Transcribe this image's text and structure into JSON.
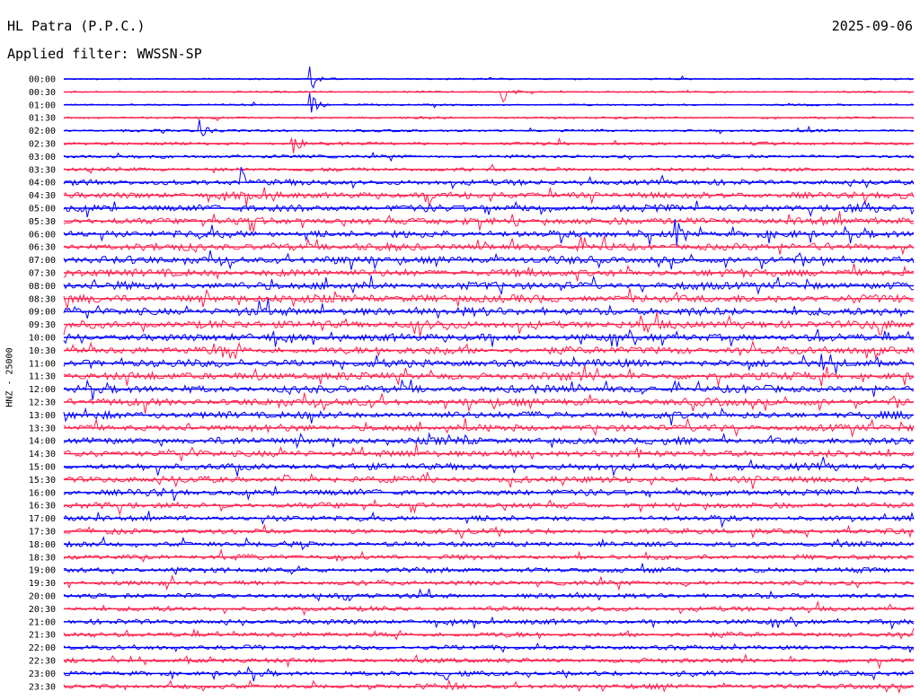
{
  "header": {
    "station": "HL Patra (P.P.C.)",
    "filter": "Applied filter: WWSSN-SP",
    "date": "2025-09-06"
  },
  "chart_data": {
    "type": "line",
    "title": "HL Patra (P.P.C.)",
    "subtitle": "Applied filter: WWSSN-SP",
    "ylabel": "HNZ - 25000",
    "xlabel": "",
    "row_labels": [
      "00:00",
      "00:30",
      "01:00",
      "01:30",
      "02:00",
      "02:30",
      "03:00",
      "03:30",
      "04:00",
      "04:30",
      "05:00",
      "05:30",
      "06:00",
      "06:30",
      "07:00",
      "07:30",
      "08:00",
      "08:30",
      "09:00",
      "09:30",
      "10:00",
      "10:30",
      "11:00",
      "11:30",
      "12:00",
      "12:30",
      "13:00",
      "13:30",
      "14:00",
      "14:30",
      "15:00",
      "15:30",
      "16:00",
      "16:30",
      "17:00",
      "17:30",
      "18:00",
      "18:30",
      "19:00",
      "19:30",
      "20:00",
      "20:30",
      "21:00",
      "21:30",
      "22:00",
      "22:30",
      "23:00",
      "23:30"
    ],
    "row_colors": [
      "#0000ff",
      "#ff1f4b"
    ],
    "noise_level": [
      0.8,
      0.8,
      0.9,
      1.0,
      1.2,
      1.5,
      1.6,
      1.8,
      2.6,
      3.2,
      3.4,
      3.4,
      3.5,
      3.6,
      3.6,
      3.6,
      3.8,
      3.8,
      3.9,
      3.9,
      3.6,
      3.6,
      3.7,
      3.7,
      3.6,
      3.6,
      3.4,
      3.4,
      3.3,
      3.3,
      3.2,
      3.2,
      3.0,
      2.8,
      2.6,
      2.6,
      2.6,
      2.5,
      2.5,
      2.4,
      2.4,
      2.4,
      2.4,
      2.4,
      2.3,
      2.3,
      2.4,
      2.3
    ],
    "events": [
      {
        "row": 0,
        "t": 0.29,
        "amp": 16
      },
      {
        "row": 1,
        "t": 0.515,
        "amp": 14
      },
      {
        "row": 2,
        "t": 0.29,
        "amp": 10
      },
      {
        "row": 4,
        "t": 0.16,
        "amp": 9
      },
      {
        "row": 5,
        "t": 0.27,
        "amp": 8
      },
      {
        "row": 8,
        "t": 0.21,
        "amp": 10
      },
      {
        "row": 9,
        "t": 0.43,
        "amp": 9
      },
      {
        "row": 12,
        "t": 0.72,
        "amp": 8
      },
      {
        "row": 31,
        "t": 0.26,
        "amp": 8
      },
      {
        "row": 40,
        "t": 0.33,
        "amp": 6
      },
      {
        "row": 46,
        "t": 0.45,
        "amp": 8
      },
      {
        "row": 47,
        "t": 0.45,
        "amp": 6
      }
    ]
  }
}
